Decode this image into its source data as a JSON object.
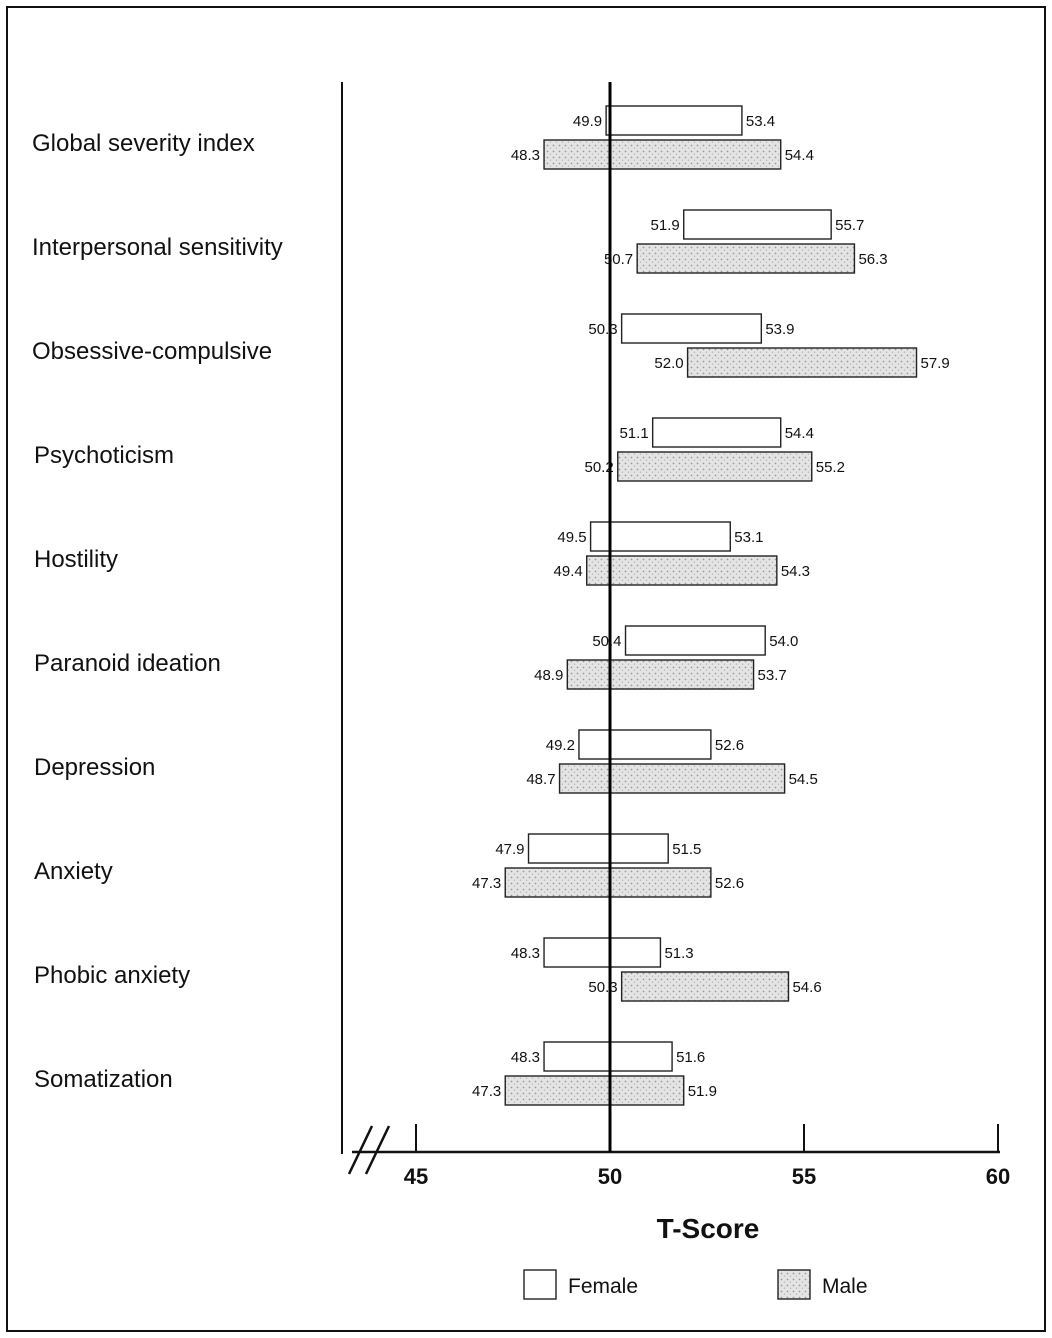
{
  "chart_data": {
    "type": "bar",
    "subtype": "floating-range",
    "xlabel": "T-Score",
    "xlim": [
      45,
      60
    ],
    "axis_break": true,
    "xticks": [
      45,
      50,
      55,
      60
    ],
    "reference_line": 50,
    "legend_placement": "bottom",
    "colors": {
      "Female": "#ffffff",
      "Male": "#dcdcdc"
    },
    "categories": [
      "Global severity index",
      "Interpersonal sensitivity",
      "Obsessive-compulsive",
      "Psychoticism",
      "Hostility",
      "Paranoid ideation",
      "Depression",
      "Anxiety",
      "Phobic anxiety",
      "Somatization"
    ],
    "series": [
      {
        "name": "Female",
        "ranges": [
          [
            49.9,
            53.4
          ],
          [
            51.9,
            55.7
          ],
          [
            50.3,
            53.9
          ],
          [
            51.1,
            54.4
          ],
          [
            49.5,
            53.1
          ],
          [
            50.4,
            54.0
          ],
          [
            49.2,
            52.6
          ],
          [
            47.9,
            51.5
          ],
          [
            48.3,
            51.3
          ],
          [
            48.3,
            51.6
          ]
        ],
        "labels": [
          [
            "49.9",
            "53.4"
          ],
          [
            "51.9",
            "55.7"
          ],
          [
            "50.3",
            "53.9"
          ],
          [
            "51.1",
            "54.4"
          ],
          [
            "49.5",
            "53.1"
          ],
          [
            "50.4",
            "54.0"
          ],
          [
            "49.2",
            "52.6"
          ],
          [
            "47.9",
            "51.5"
          ],
          [
            "48.3",
            "51.3"
          ],
          [
            "48.3",
            "51.6"
          ]
        ]
      },
      {
        "name": "Male",
        "ranges": [
          [
            48.3,
            54.4
          ],
          [
            50.7,
            56.3
          ],
          [
            52.0,
            57.9
          ],
          [
            50.2,
            55.2
          ],
          [
            49.4,
            54.3
          ],
          [
            48.9,
            53.7
          ],
          [
            48.7,
            54.5
          ],
          [
            47.3,
            52.6
          ],
          [
            50.3,
            54.6
          ],
          [
            47.3,
            51.9
          ]
        ],
        "labels": [
          [
            "48.3",
            "54.4"
          ],
          [
            "50.7",
            "56.3"
          ],
          [
            "52.0",
            "57.9"
          ],
          [
            "50.2",
            "55.2"
          ],
          [
            "49.4",
            "54.3"
          ],
          [
            "48.9",
            "53.7"
          ],
          [
            "48.7",
            "54.5"
          ],
          [
            "47.3",
            "52.6"
          ],
          [
            "50.3",
            "54.6"
          ],
          [
            "47.3",
            "51.9"
          ]
        ]
      }
    ]
  }
}
